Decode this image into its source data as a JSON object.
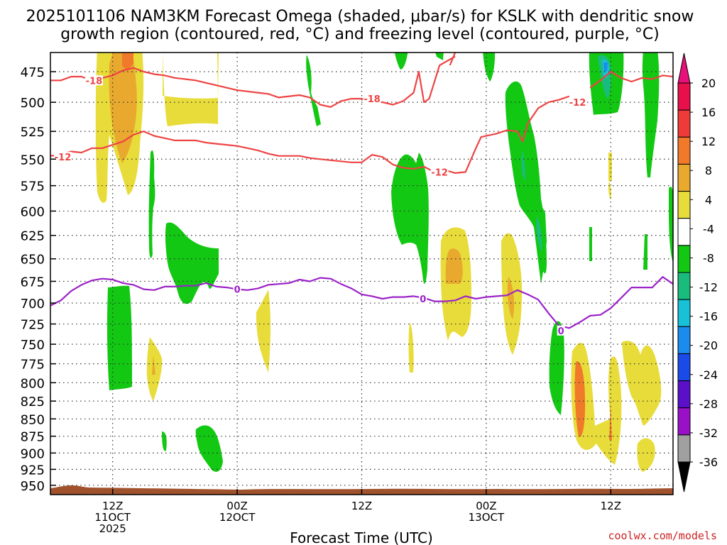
{
  "title_line1": "2025101106 NAM3KM Forecast Omega (shaded, μbar/s) for KSLK with dendritic snow",
  "title_line2": "growth region (contoured, red, °C) and freezing level (contoured, purple, °C)",
  "credit": "coolwx.com/models",
  "chart_data": {
    "type": "heatmap",
    "xlabel": "Forecast Time (UTC)",
    "ylabel": "",
    "y_scale": "log-pressure",
    "y_ticks": [
      475,
      500,
      525,
      550,
      575,
      600,
      625,
      650,
      675,
      700,
      725,
      750,
      775,
      800,
      825,
      850,
      875,
      900,
      925,
      950
    ],
    "y_range_hpa": [
      460,
      965
    ],
    "x_range_hours": [
      6,
      66
    ],
    "x_ticks": [
      {
        "hour": 12,
        "l1": "12Z",
        "l2": "11OCT",
        "l3": "2025"
      },
      {
        "hour": 24,
        "l1": "00Z",
        "l2": "12OCT",
        "l3": ""
      },
      {
        "hour": 36,
        "l1": "12Z",
        "l2": "",
        "l3": ""
      },
      {
        "hour": 48,
        "l1": "00Z",
        "l2": "13OCT",
        "l3": ""
      },
      {
        "hour": 60,
        "l1": "12Z",
        "l2": "",
        "l3": ""
      }
    ],
    "grid": true,
    "colorbar": {
      "levels": [
        20,
        16,
        12,
        8,
        4,
        -4,
        -8,
        -12,
        -16,
        -20,
        -24,
        -28,
        -32,
        -36
      ],
      "colors": [
        "#e8104a",
        "#ef3a3a",
        "#f07a2a",
        "#e8a92e",
        "#e8dc3a",
        "#ffffff",
        "#12c812",
        "#1abc7e",
        "#18c0d8",
        "#1a8cf0",
        "#1a4ae8",
        "#5a10c8",
        "#9a10c8",
        "#a0a0a0"
      ],
      "over_color": "#e8107a",
      "under_color": "#000000"
    },
    "contours": [
      {
        "level": -18,
        "color": "#ee4444",
        "labels": [
          {
            "text": "-18",
            "hour": 10.2,
            "p": 482
          },
          {
            "text": "-18",
            "hour": 37.0,
            "p": 497
          }
        ],
        "points": [
          [
            6,
            482
          ],
          [
            7,
            482
          ],
          [
            8,
            479
          ],
          [
            9,
            479
          ],
          [
            10,
            482
          ],
          [
            11,
            480
          ],
          [
            12,
            478
          ],
          [
            13,
            474
          ],
          [
            14,
            472
          ],
          [
            15,
            475
          ],
          [
            16,
            477
          ],
          [
            17,
            478
          ],
          [
            18,
            480
          ],
          [
            19,
            481
          ],
          [
            20,
            482
          ],
          [
            21,
            484
          ],
          [
            22,
            486
          ],
          [
            23,
            488
          ],
          [
            24,
            490
          ],
          [
            25,
            491
          ],
          [
            26,
            492
          ],
          [
            27,
            493
          ],
          [
            28,
            496
          ],
          [
            30,
            494
          ],
          [
            31,
            496
          ],
          [
            32,
            502
          ],
          [
            33,
            504
          ],
          [
            34,
            499
          ],
          [
            35,
            497
          ],
          [
            36,
            497
          ],
          [
            37,
            499
          ],
          [
            38,
            500
          ],
          [
            39,
            502
          ],
          [
            40,
            499
          ],
          [
            41,
            492
          ],
          [
            41.5,
            475
          ],
          [
            42,
            500
          ],
          [
            42.5,
            497
          ],
          [
            43.5,
            470
          ],
          [
            45,
            463
          ]
        ]
      },
      {
        "level": -18,
        "color": "#ee4444",
        "labels": [],
        "points": [
          [
            44.5,
            470
          ],
          [
            45,
            460
          ]
        ]
      },
      {
        "level": -12,
        "color": "#ee4444",
        "labels": [
          {
            "text": "-12",
            "hour": 7.2,
            "p": 548
          },
          {
            "text": "-12",
            "hour": 43.5,
            "p": 562
          },
          {
            "text": "-12",
            "hour": 56.8,
            "p": 500
          }
        ],
        "points": [
          [
            6,
            547
          ],
          [
            7,
            546
          ],
          [
            8,
            543
          ],
          [
            9,
            544
          ],
          [
            10,
            540
          ],
          [
            11,
            540
          ],
          [
            12,
            537
          ],
          [
            13,
            534
          ],
          [
            14,
            528
          ],
          [
            15,
            525
          ],
          [
            16,
            529
          ],
          [
            17,
            531
          ],
          [
            18,
            533
          ],
          [
            19,
            533
          ],
          [
            20,
            533
          ],
          [
            21,
            535
          ],
          [
            22,
            536
          ],
          [
            23,
            537
          ],
          [
            24,
            538
          ],
          [
            25,
            540
          ],
          [
            26,
            542
          ],
          [
            27,
            545
          ],
          [
            28,
            547
          ],
          [
            29,
            547
          ],
          [
            30,
            547
          ],
          [
            31,
            549
          ],
          [
            32,
            550
          ],
          [
            33,
            551
          ],
          [
            34,
            552
          ],
          [
            35,
            553
          ],
          [
            36,
            553
          ],
          [
            37,
            546
          ],
          [
            38,
            548
          ],
          [
            39,
            555
          ],
          [
            40,
            558
          ],
          [
            41,
            559
          ],
          [
            42,
            557
          ],
          [
            43,
            562
          ],
          [
            44,
            560
          ],
          [
            45,
            563
          ],
          [
            46,
            562
          ],
          [
            47,
            540
          ],
          [
            47.5,
            530
          ],
          [
            49,
            527
          ],
          [
            50,
            524
          ],
          [
            51,
            525
          ],
          [
            51.5,
            534
          ],
          [
            52,
            518
          ],
          [
            53,
            505
          ],
          [
            54,
            500
          ],
          [
            55,
            498
          ],
          [
            56,
            495
          ]
        ]
      },
      {
        "level": -12,
        "color": "#ee4444",
        "labels": [],
        "points": [
          [
            58,
            488
          ],
          [
            59,
            482
          ],
          [
            60,
            475
          ],
          [
            61,
            480
          ],
          [
            62,
            483
          ],
          [
            63,
            480
          ],
          [
            64,
            481
          ],
          [
            65,
            478
          ],
          [
            66,
            479
          ]
        ]
      },
      {
        "level": 0,
        "color": "#9b22c8",
        "labels": [
          {
            "text": "0",
            "hour": 24,
            "p": 684
          },
          {
            "text": "0",
            "hour": 41.9,
            "p": 695
          },
          {
            "text": "0",
            "hour": 55.2,
            "p": 733
          }
        ],
        "points": [
          [
            6,
            703
          ],
          [
            7,
            697
          ],
          [
            8,
            686
          ],
          [
            9,
            679
          ],
          [
            10,
            674
          ],
          [
            11,
            672
          ],
          [
            12,
            673
          ],
          [
            13,
            677
          ],
          [
            14,
            679
          ],
          [
            15,
            684
          ],
          [
            16,
            685
          ],
          [
            17,
            681
          ],
          [
            18,
            681
          ],
          [
            19,
            680
          ],
          [
            20,
            680
          ],
          [
            21,
            677
          ],
          [
            22,
            681
          ],
          [
            23,
            682
          ],
          [
            24,
            684
          ],
          [
            25,
            685
          ],
          [
            26,
            683
          ],
          [
            27,
            679
          ],
          [
            28,
            678
          ],
          [
            29,
            677
          ],
          [
            30,
            673
          ],
          [
            31,
            675
          ],
          [
            32,
            671
          ],
          [
            33,
            672
          ],
          [
            34,
            678
          ],
          [
            35,
            683
          ],
          [
            36,
            690
          ],
          [
            37,
            692
          ],
          [
            38,
            695
          ],
          [
            39,
            693
          ],
          [
            40,
            693
          ],
          [
            41,
            692
          ],
          [
            42,
            694
          ],
          [
            43,
            698
          ],
          [
            44,
            698
          ],
          [
            45,
            697
          ],
          [
            46,
            692
          ],
          [
            47,
            695
          ],
          [
            48,
            693
          ],
          [
            49,
            692
          ],
          [
            50,
            691
          ],
          [
            51,
            685
          ],
          [
            52,
            690
          ],
          [
            53,
            696
          ],
          [
            54,
            712
          ],
          [
            55,
            727
          ],
          [
            56,
            730
          ],
          [
            57,
            723
          ],
          [
            58,
            715
          ],
          [
            59,
            714
          ],
          [
            60,
            706
          ],
          [
            61,
            694
          ],
          [
            62,
            682
          ],
          [
            63,
            682
          ],
          [
            64,
            682
          ],
          [
            65,
            670
          ],
          [
            66,
            678
          ]
        ]
      }
    ]
  }
}
